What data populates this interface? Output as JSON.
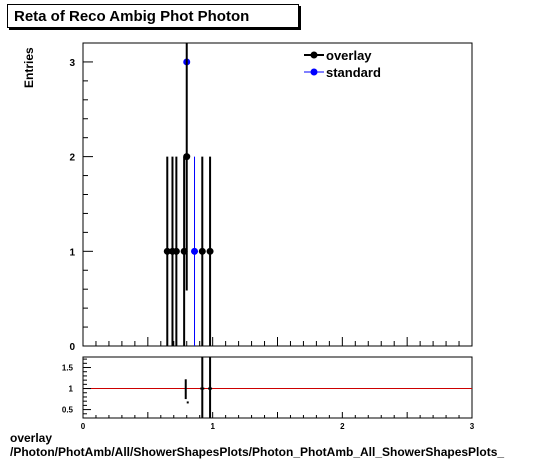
{
  "title": "Reta of Reco Ambig Phot Photon",
  "footer": {
    "line1": "overlay",
    "line2": "/Photon/PhotAmb/All/ShowerShapesPlots/Photon_PhotAmb_All_ShowerShapesPlots_"
  },
  "chart_data": [
    {
      "type": "scatter",
      "ylabel": "Entries",
      "xlim": [
        0,
        3
      ],
      "ylim": [
        0,
        3.2
      ],
      "y_ticks": [
        0,
        1,
        2,
        3
      ],
      "legend": {
        "placement": "top-right",
        "entries": [
          "overlay",
          "standard"
        ]
      },
      "series": [
        {
          "name": "overlay",
          "color": "#000000",
          "points": [
            {
              "x": 0.65,
              "y": 1
            },
            {
              "x": 0.69,
              "y": 1
            },
            {
              "x": 0.72,
              "y": 1
            },
            {
              "x": 0.78,
              "y": 1
            },
            {
              "x": 0.8,
              "y": 2
            },
            {
              "x": 0.92,
              "y": 1
            },
            {
              "x": 0.98,
              "y": 1
            }
          ]
        },
        {
          "name": "standard",
          "color": "#0000ff",
          "points": [
            {
              "x": 0.8,
              "y": 3
            },
            {
              "x": 0.86,
              "y": 1
            }
          ]
        }
      ]
    },
    {
      "type": "scatter",
      "xlim": [
        0,
        3
      ],
      "ylim": [
        0.3,
        1.75
      ],
      "x_ticks": [
        0,
        1,
        2,
        3
      ],
      "y_ticks": [
        0.5,
        1,
        1.5
      ],
      "reference_line": 1,
      "reference_color": "#cc0000",
      "points": [
        {
          "x": 0.8,
          "y": 0.67
        },
        {
          "x": 0.92,
          "y": 1.0
        },
        {
          "x": 0.98,
          "y": 1.0
        }
      ]
    }
  ]
}
